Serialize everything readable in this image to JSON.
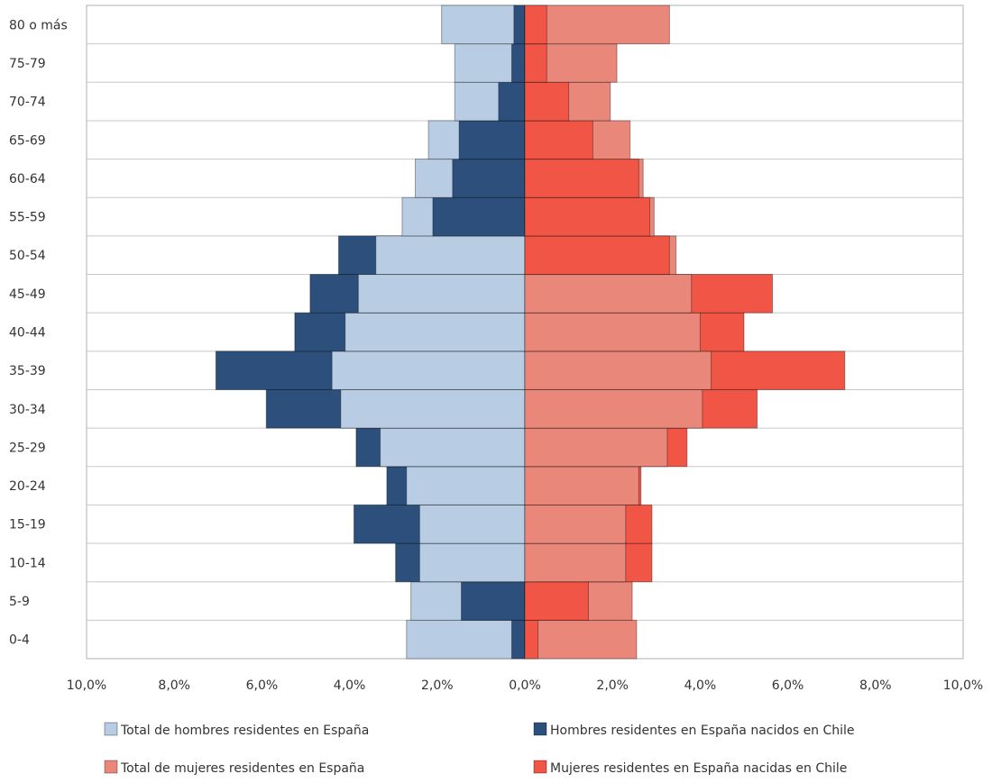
{
  "chart_data": {
    "type": "bar",
    "orientation": "horizontal",
    "categories": [
      "0-4",
      "5-9",
      "10-14",
      "15-19",
      "20-24",
      "25-29",
      "30-34",
      "35-39",
      "40-44",
      "45-49",
      "50-54",
      "55-59",
      "60-64",
      "65-69",
      "70-74",
      "75-79",
      "80 o más"
    ],
    "series": [
      {
        "name": "Total de hombres residentes en España",
        "side": "left",
        "color": "#b8cce4",
        "values": [
          2.7,
          2.6,
          2.4,
          2.4,
          2.7,
          3.3,
          4.2,
          4.4,
          4.1,
          3.8,
          3.4,
          2.8,
          2.5,
          2.2,
          1.6,
          1.6,
          1.9
        ]
      },
      {
        "name": "Hombres residentes en España nacidos en Chile",
        "side": "left",
        "color": "#2c4f7c",
        "values": [
          0.3,
          1.45,
          2.95,
          3.9,
          3.15,
          3.85,
          5.9,
          7.05,
          5.25,
          4.9,
          4.25,
          2.1,
          1.65,
          1.5,
          0.6,
          0.3,
          0.25
        ]
      },
      {
        "name": "Total de mujeres residentes en España",
        "side": "right",
        "color": "#e8877a",
        "values": [
          2.55,
          2.45,
          2.3,
          2.3,
          2.6,
          3.25,
          4.05,
          4.25,
          4.0,
          3.8,
          3.45,
          2.95,
          2.7,
          2.4,
          1.95,
          2.1,
          3.3
        ]
      },
      {
        "name": "Mujeres residentes en España nacidas en Chile",
        "side": "right",
        "color": "#f05545",
        "values": [
          0.3,
          1.45,
          2.9,
          2.9,
          2.65,
          3.7,
          5.3,
          7.3,
          5.0,
          5.65,
          3.3,
          2.85,
          2.6,
          1.55,
          1.0,
          0.5,
          0.5
        ]
      }
    ],
    "xticks": [
      "10,0%",
      "8,0%",
      "6,0%",
      "4,0%",
      "2,0%",
      "0,0%",
      "2,0%",
      "4,0%",
      "6,0%",
      "8,0%",
      "10,0%"
    ],
    "xlim": [
      -10,
      10
    ],
    "grid": true,
    "legend_position": "bottom"
  }
}
